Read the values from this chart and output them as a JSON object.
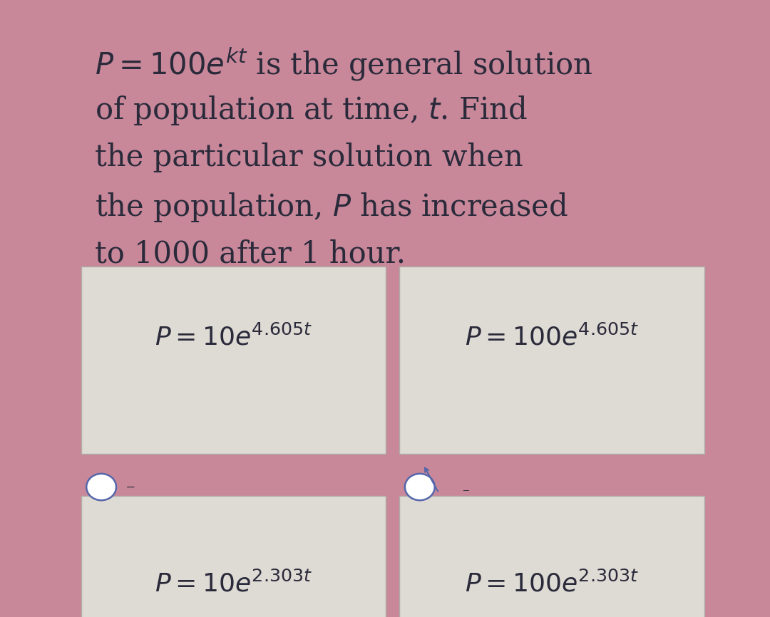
{
  "bg_outer": "#c8889a",
  "bg_inner": "#e8e5e0",
  "option_box_color": "#dedad4",
  "option_border_color": "#b0aca6",
  "text_color": "#2a2a3a",
  "radio_color": "#5566aa",
  "lines": [
    "$P=100e^{kt}$ is the general solution",
    "of population at time, $t$. Find",
    "the particular solution when",
    "the population, $P$ has increased",
    "to 1000 after 1 hour."
  ],
  "option_top_left": "$P=10e^{4.605t}$",
  "option_top_right": "$P=100e^{4.605t}$",
  "option_bot_left": "$P=10e^{2.303t}$",
  "option_bot_right": "$P=100e^{2.303t}$",
  "title_fontsize": 30,
  "option_fontsize": 26
}
